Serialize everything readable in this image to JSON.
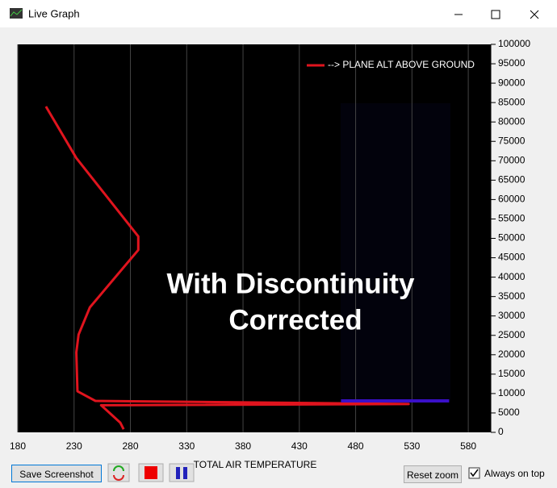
{
  "window": {
    "title": "Live Graph"
  },
  "chart_data": {
    "type": "line",
    "x_label": "TOTAL AIR TEMPERATURE",
    "annotation": [
      "With Discontinuity",
      "Corrected"
    ],
    "xlim": [
      180,
      600
    ],
    "xticks": [
      180,
      230,
      280,
      330,
      380,
      430,
      480,
      530,
      580
    ],
    "ylim": [
      0,
      100000
    ],
    "yticks": [
      0,
      5000,
      10000,
      15000,
      20000,
      25000,
      30000,
      35000,
      40000,
      45000,
      50000,
      55000,
      60000,
      65000,
      70000,
      75000,
      80000,
      85000,
      90000,
      95000,
      100000
    ],
    "grid": true,
    "legend": "top-right",
    "series": [
      {
        "name": "--> PLANE ALT ABOVE GROUND",
        "color": "#e0141e",
        "x": [
          274,
          271,
          254,
          527,
          249,
          233,
          232,
          234,
          244,
          287,
          287,
          232,
          205
        ],
        "values": [
          800,
          2500,
          7000,
          7300,
          8100,
          10600,
          20600,
          25200,
          32200,
          47000,
          50500,
          70700,
          84000
        ]
      },
      {
        "color": "#3a10c8",
        "x": [
          467,
          563
        ],
        "values": [
          8100,
          8100
        ]
      }
    ]
  },
  "controls": {
    "save": "Save Screenshot",
    "reset": "Reset zoom",
    "on_top": "Always on top"
  }
}
